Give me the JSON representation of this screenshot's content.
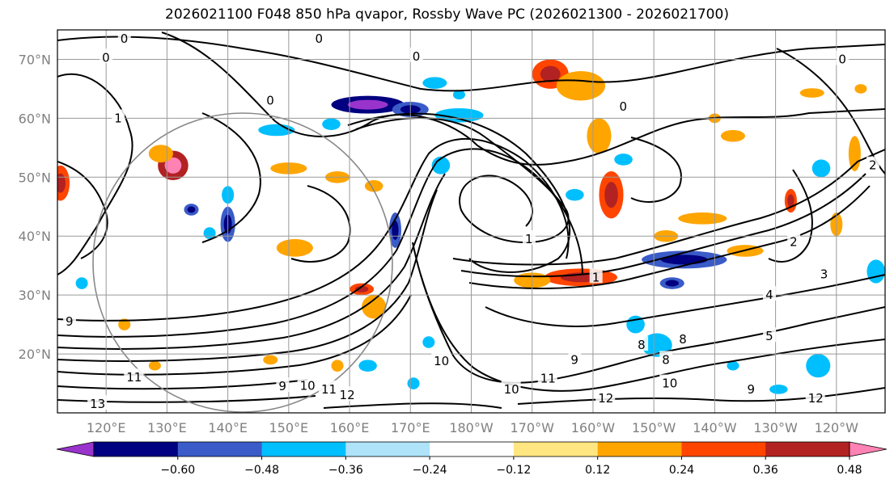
{
  "title": "2026021100 F048 850 hPa qvapor, Rossby Wave PC (2026021300 - 2026021700)",
  "map": {
    "projection": "equirectangular",
    "lon_range": [
      112,
      248
    ],
    "lat_range": [
      10,
      75
    ],
    "lat_ticks": [
      {
        "value": 20,
        "label": "20°N"
      },
      {
        "value": 30,
        "label": "30°N"
      },
      {
        "value": 40,
        "label": "40°N"
      },
      {
        "value": 50,
        "label": "50°N"
      },
      {
        "value": 60,
        "label": "60°N"
      },
      {
        "value": 70,
        "label": "70°N"
      }
    ],
    "lon_ticks": [
      {
        "value": 120,
        "label": "120°E"
      },
      {
        "value": 130,
        "label": "130°E"
      },
      {
        "value": 140,
        "label": "140°E"
      },
      {
        "value": 150,
        "label": "150°E"
      },
      {
        "value": 160,
        "label": "160°E"
      },
      {
        "value": 170,
        "label": "170°E"
      },
      {
        "value": 180,
        "label": "180°W"
      },
      {
        "value": 190,
        "label": "170°W"
      },
      {
        "value": 200,
        "label": "160°W"
      },
      {
        "value": 210,
        "label": "150°W"
      },
      {
        "value": 220,
        "label": "140°W"
      },
      {
        "value": 230,
        "label": "130°W"
      },
      {
        "value": 240,
        "label": "120°W"
      }
    ],
    "grid_color": "#999999",
    "contour_labels": [
      {
        "lon": 123,
        "lat": 73.5,
        "text": "0"
      },
      {
        "lon": 171,
        "lat": 70.5,
        "text": "0"
      },
      {
        "lon": 155,
        "lat": 73.5,
        "text": "0"
      },
      {
        "lon": 120,
        "lat": 70.3,
        "text": "0"
      },
      {
        "lon": 205,
        "lat": 62,
        "text": "0"
      },
      {
        "lon": 241,
        "lat": 70,
        "text": "0"
      },
      {
        "lon": 122,
        "lat": 60,
        "text": "1"
      },
      {
        "lon": 147,
        "lat": 63,
        "text": "0"
      },
      {
        "lon": 246,
        "lat": 52,
        "text": "2"
      },
      {
        "lon": 189.5,
        "lat": 39.5,
        "text": "1"
      },
      {
        "lon": 200.5,
        "lat": 33,
        "text": "1"
      },
      {
        "lon": 233,
        "lat": 39,
        "text": "2"
      },
      {
        "lon": 238,
        "lat": 33.5,
        "text": "3"
      },
      {
        "lon": 229,
        "lat": 30,
        "text": "4"
      },
      {
        "lon": 229,
        "lat": 23,
        "text": "5"
      },
      {
        "lon": 114,
        "lat": 25.5,
        "text": "9"
      },
      {
        "lon": 124,
        "lat": 16,
        "text": "11"
      },
      {
        "lon": 118,
        "lat": 11.5,
        "text": "13"
      },
      {
        "lon": 149,
        "lat": 14.5,
        "text": "9"
      },
      {
        "lon": 152.5,
        "lat": 14.6,
        "text": "10"
      },
      {
        "lon": 156,
        "lat": 14,
        "text": "11"
      },
      {
        "lon": 159,
        "lat": 13,
        "text": "12"
      },
      {
        "lon": 174.5,
        "lat": 18.8,
        "text": "10"
      },
      {
        "lon": 186,
        "lat": 14,
        "text": "10"
      },
      {
        "lon": 192,
        "lat": 15.8,
        "text": "11"
      },
      {
        "lon": 201.5,
        "lat": 12.5,
        "text": "12"
      },
      {
        "lon": 212,
        "lat": 15,
        "text": "10"
      },
      {
        "lon": 208,
        "lat": 21.5,
        "text": "8"
      },
      {
        "lon": 212,
        "lat": 19,
        "text": "8"
      },
      {
        "lon": 214.8,
        "lat": 22.5,
        "text": "8"
      },
      {
        "lon": 226,
        "lat": 14,
        "text": "9"
      },
      {
        "lon": 236,
        "lat": 12.5,
        "text": "12"
      },
      {
        "lon": 197,
        "lat": 19,
        "text": "9"
      }
    ]
  },
  "colorbar": {
    "boundaries": [
      -0.6,
      -0.48,
      -0.36,
      -0.24,
      -0.12,
      0.12,
      0.24,
      0.36,
      0.48,
      0.6
    ],
    "tick_labels": [
      "−0.60",
      "−0.48",
      "−0.36",
      "−0.24",
      "−0.12",
      "0.12",
      "0.24",
      "0.36",
      "0.48",
      "0.60"
    ],
    "colors": [
      "#9933cc",
      "#000080",
      "#3a5bc8",
      "#00bfff",
      "#aee3fa",
      "#ffffff",
      "#ffe680",
      "#ffa500",
      "#ff4500",
      "#b22222",
      "#ff82b4"
    ],
    "extend": "both"
  },
  "shading": {
    "anomalies": [
      {
        "lon": 163,
        "lat": 62.3,
        "rx": 6,
        "ry": 1.5,
        "v": -0.5
      },
      {
        "lon": 170,
        "lat": 61.5,
        "rx": 3,
        "ry": 1.3,
        "v": -0.38
      },
      {
        "lon": 178,
        "lat": 60.5,
        "rx": 4,
        "ry": 1.2,
        "v": -0.3
      },
      {
        "lon": 193,
        "lat": 67.5,
        "rx": 3,
        "ry": 2.5,
        "v": 0.4
      },
      {
        "lon": 198,
        "lat": 65.5,
        "rx": 4,
        "ry": 2.5,
        "v": 0.3
      },
      {
        "lon": 201,
        "lat": 57,
        "rx": 2,
        "ry": 3,
        "v": 0.35
      },
      {
        "lon": 203,
        "lat": 47,
        "rx": 2,
        "ry": 4,
        "v": 0.45
      },
      {
        "lon": 198,
        "lat": 33,
        "rx": 6,
        "ry": 1.5,
        "v": 0.45
      },
      {
        "lon": 190,
        "lat": 32.5,
        "rx": 3,
        "ry": 1.3,
        "v": 0.25
      },
      {
        "lon": 131,
        "lat": 52,
        "rx": 2.5,
        "ry": 2.5,
        "v": 0.5
      },
      {
        "lon": 129,
        "lat": 54,
        "rx": 2,
        "ry": 1.5,
        "v": 0.3
      },
      {
        "lon": 112.5,
        "lat": 49,
        "rx": 1.5,
        "ry": 3,
        "v": 0.4
      },
      {
        "lon": 150,
        "lat": 51.5,
        "rx": 3,
        "ry": 1,
        "v": 0.3
      },
      {
        "lon": 158,
        "lat": 50,
        "rx": 2,
        "ry": 1,
        "v": 0.3
      },
      {
        "lon": 164,
        "lat": 48.5,
        "rx": 1.5,
        "ry": 1,
        "v": 0.35
      },
      {
        "lon": 167.5,
        "lat": 41,
        "rx": 1,
        "ry": 3,
        "v": -0.4
      },
      {
        "lon": 151,
        "lat": 38,
        "rx": 3,
        "ry": 1.5,
        "v": 0.3
      },
      {
        "lon": 140,
        "lat": 42,
        "rx": 1.2,
        "ry": 3,
        "v": -0.38
      },
      {
        "lon": 140,
        "lat": 47,
        "rx": 1,
        "ry": 1.5,
        "v": -0.3
      },
      {
        "lon": 148,
        "lat": 58,
        "rx": 3,
        "ry": 1,
        "v": -0.3
      },
      {
        "lon": 162,
        "lat": 31,
        "rx": 2,
        "ry": 1,
        "v": 0.45
      },
      {
        "lon": 164,
        "lat": 28,
        "rx": 2,
        "ry": 2,
        "v": 0.3
      },
      {
        "lon": 215,
        "lat": 36,
        "rx": 7,
        "ry": 1.5,
        "v": -0.42
      },
      {
        "lon": 225,
        "lat": 37.5,
        "rx": 3,
        "ry": 1,
        "v": 0.3
      },
      {
        "lon": 213,
        "lat": 32,
        "rx": 2,
        "ry": 1,
        "v": -0.4
      },
      {
        "lon": 218,
        "lat": 43,
        "rx": 4,
        "ry": 1,
        "v": 0.3
      },
      {
        "lon": 212,
        "lat": 40,
        "rx": 2,
        "ry": 1,
        "v": 0.25
      },
      {
        "lon": 223,
        "lat": 57,
        "rx": 2,
        "ry": 1,
        "v": 0.35
      },
      {
        "lon": 220,
        "lat": 60,
        "rx": 1,
        "ry": 0.8,
        "v": 0.3
      },
      {
        "lon": 237.5,
        "lat": 51.5,
        "rx": 1.5,
        "ry": 1.5,
        "v": -0.3
      },
      {
        "lon": 243,
        "lat": 54,
        "rx": 1,
        "ry": 3,
        "v": 0.35
      },
      {
        "lon": 232.5,
        "lat": 46,
        "rx": 1,
        "ry": 2,
        "v": 0.4
      },
      {
        "lon": 240,
        "lat": 42,
        "rx": 1,
        "ry": 2,
        "v": 0.35
      },
      {
        "lon": 210.5,
        "lat": 21.5,
        "rx": 2.5,
        "ry": 2,
        "v": -0.3
      },
      {
        "lon": 207,
        "lat": 25,
        "rx": 1.5,
        "ry": 1.5,
        "v": -0.3
      },
      {
        "lon": 237,
        "lat": 18,
        "rx": 2,
        "ry": 2,
        "v": -0.28
      },
      {
        "lon": 246.5,
        "lat": 34,
        "rx": 1.5,
        "ry": 2,
        "v": -0.3
      },
      {
        "lon": 205,
        "lat": 53,
        "rx": 1.5,
        "ry": 1,
        "v": -0.3
      },
      {
        "lon": 175,
        "lat": 52,
        "rx": 1.5,
        "ry": 1.5,
        "v": -0.3
      },
      {
        "lon": 157,
        "lat": 59,
        "rx": 1.5,
        "ry": 1,
        "v": -0.3
      },
      {
        "lon": 174,
        "lat": 66,
        "rx": 2,
        "ry": 1,
        "v": -0.3
      },
      {
        "lon": 178,
        "lat": 64,
        "rx": 1,
        "ry": 0.8,
        "v": -0.28
      },
      {
        "lon": 197,
        "lat": 47,
        "rx": 1.5,
        "ry": 1,
        "v": -0.28
      },
      {
        "lon": 134,
        "lat": 44.5,
        "rx": 1.2,
        "ry": 1,
        "v": -0.38
      },
      {
        "lon": 137,
        "lat": 40.5,
        "rx": 1,
        "ry": 1,
        "v": -0.3
      },
      {
        "lon": 163,
        "lat": 18,
        "rx": 1.5,
        "ry": 1,
        "v": -0.3
      },
      {
        "lon": 158,
        "lat": 18,
        "rx": 1,
        "ry": 1,
        "v": 0.3
      },
      {
        "lon": 147,
        "lat": 19,
        "rx": 1.2,
        "ry": 0.8,
        "v": 0.3
      },
      {
        "lon": 173,
        "lat": 22,
        "rx": 1,
        "ry": 1,
        "v": -0.3
      },
      {
        "lon": 170.5,
        "lat": 15,
        "rx": 1,
        "ry": 1,
        "v": -0.28
      },
      {
        "lon": 236,
        "lat": 64.3,
        "rx": 2,
        "ry": 0.8,
        "v": 0.3
      },
      {
        "lon": 244,
        "lat": 65,
        "rx": 1,
        "ry": 0.8,
        "v": 0.28
      },
      {
        "lon": 230.5,
        "lat": 14,
        "rx": 1.5,
        "ry": 0.8,
        "v": -0.28
      },
      {
        "lon": 223,
        "lat": 18,
        "rx": 1,
        "ry": 0.8,
        "v": -0.28
      },
      {
        "lon": 116,
        "lat": 32,
        "rx": 1,
        "ry": 1,
        "v": -0.28
      },
      {
        "lon": 123,
        "lat": 25,
        "rx": 1,
        "ry": 1,
        "v": 0.3
      },
      {
        "lon": 128,
        "lat": 18,
        "rx": 1,
        "ry": 0.8,
        "v": 0.3
      }
    ]
  }
}
